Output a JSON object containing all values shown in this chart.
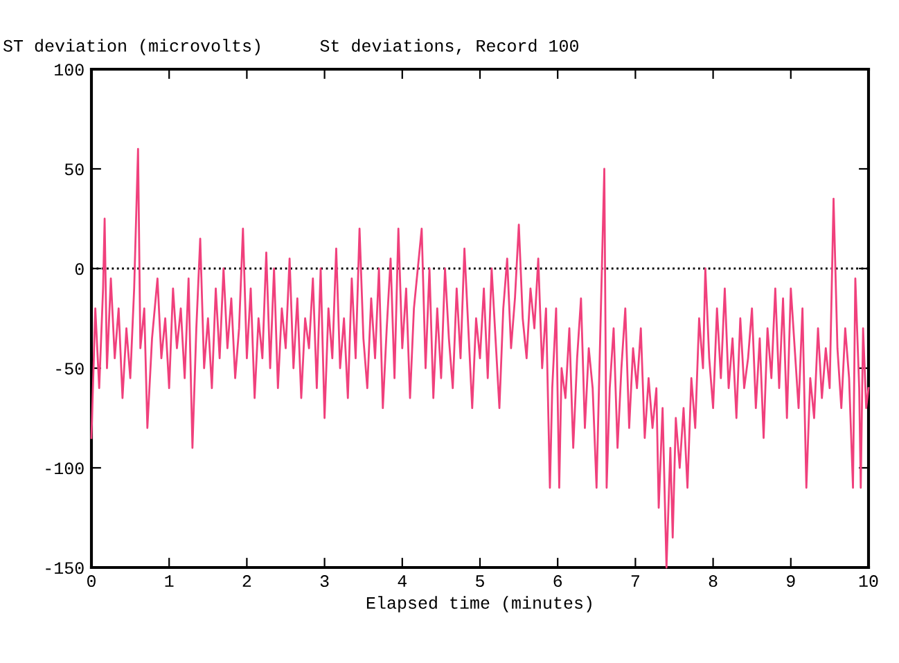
{
  "chart_data": {
    "type": "line",
    "title": "St deviations, Record 100",
    "xlabel": "Elapsed time (minutes)",
    "ylabel": "ST deviation (microvolts)",
    "xlim": [
      0,
      10
    ],
    "xticks": [
      0,
      1,
      2,
      3,
      4,
      5,
      6,
      7,
      8,
      9,
      10
    ],
    "ylim": [
      -150,
      100
    ],
    "yticks": [
      -150,
      -100,
      -50,
      0,
      50,
      100
    ],
    "grid": false,
    "legend": false,
    "ref_lines": [
      {
        "axis": "y",
        "value": 0,
        "color": "#000000",
        "line_style": "dotted"
      }
    ],
    "series": [
      {
        "color": "#f0407c",
        "x": [
          0,
          0.05,
          0.1,
          0.15,
          0.17,
          0.2,
          0.25,
          0.3,
          0.35,
          0.4,
          0.45,
          0.5,
          0.55,
          0.6,
          0.63,
          0.68,
          0.72,
          0.78,
          0.85,
          0.9,
          0.95,
          1.0,
          1.05,
          1.1,
          1.15,
          1.2,
          1.25,
          1.3,
          1.35,
          1.4,
          1.45,
          1.5,
          1.55,
          1.6,
          1.65,
          1.7,
          1.75,
          1.8,
          1.85,
          1.9,
          1.95,
          2.0,
          2.05,
          2.1,
          2.15,
          2.2,
          2.25,
          2.3,
          2.35,
          2.4,
          2.45,
          2.5,
          2.55,
          2.6,
          2.65,
          2.7,
          2.75,
          2.8,
          2.85,
          2.9,
          2.95,
          3.0,
          3.05,
          3.1,
          3.15,
          3.2,
          3.25,
          3.3,
          3.35,
          3.4,
          3.45,
          3.5,
          3.55,
          3.6,
          3.65,
          3.7,
          3.75,
          3.8,
          3.85,
          3.9,
          3.95,
          4.0,
          4.05,
          4.1,
          4.15,
          4.25,
          4.3,
          4.35,
          4.4,
          4.45,
          4.5,
          4.55,
          4.6,
          4.65,
          4.7,
          4.75,
          4.8,
          4.85,
          4.9,
          4.95,
          5.0,
          5.05,
          5.1,
          5.15,
          5.2,
          5.25,
          5.3,
          5.35,
          5.4,
          5.45,
          5.5,
          5.55,
          5.6,
          5.65,
          5.7,
          5.75,
          5.8,
          5.85,
          5.9,
          5.93,
          5.98,
          6.02,
          6.05,
          6.1,
          6.15,
          6.2,
          6.25,
          6.3,
          6.35,
          6.4,
          6.45,
          6.5,
          6.55,
          6.6,
          6.63,
          6.67,
          6.72,
          6.77,
          6.82,
          6.87,
          6.92,
          6.97,
          7.02,
          7.07,
          7.12,
          7.17,
          7.22,
          7.27,
          7.3,
          7.35,
          7.4,
          7.45,
          7.48,
          7.52,
          7.57,
          7.62,
          7.67,
          7.72,
          7.77,
          7.82,
          7.87,
          7.9,
          7.95,
          8.0,
          8.05,
          8.1,
          8.15,
          8.2,
          8.25,
          8.3,
          8.35,
          8.4,
          8.45,
          8.5,
          8.55,
          8.6,
          8.65,
          8.7,
          8.75,
          8.8,
          8.85,
          8.9,
          8.95,
          9.0,
          9.05,
          9.1,
          9.15,
          9.2,
          9.25,
          9.3,
          9.35,
          9.4,
          9.45,
          9.5,
          9.55,
          9.6,
          9.65,
          9.7,
          9.75,
          9.8,
          9.83,
          9.88,
          9.9,
          9.93,
          9.97,
          10.0
        ],
        "values": [
          -85,
          -20,
          -60,
          -10,
          25,
          -50,
          -5,
          -45,
          -20,
          -65,
          -30,
          -55,
          -10,
          60,
          -40,
          -20,
          -80,
          -35,
          -5,
          -45,
          -25,
          -60,
          -10,
          -40,
          -20,
          -55,
          -5,
          -90,
          -30,
          15,
          -50,
          -25,
          -60,
          -10,
          -45,
          0,
          -40,
          -15,
          -55,
          -30,
          20,
          -45,
          -10,
          -65,
          -25,
          -45,
          8,
          -50,
          0,
          -60,
          -20,
          -40,
          5,
          -50,
          -15,
          -65,
          -25,
          -40,
          -5,
          -60,
          0,
          -75,
          -20,
          -45,
          10,
          -50,
          -25,
          -65,
          -5,
          -45,
          20,
          -35,
          -60,
          -15,
          -45,
          0,
          -70,
          -30,
          5,
          -55,
          20,
          -40,
          -10,
          -65,
          -20,
          20,
          -50,
          0,
          -65,
          -20,
          -55,
          0,
          -35,
          -60,
          -10,
          -45,
          10,
          -30,
          -70,
          -25,
          -45,
          -10,
          -55,
          0,
          -35,
          -70,
          -20,
          5,
          -40,
          -15,
          22,
          -25,
          -45,
          -10,
          -30,
          5,
          -50,
          -20,
          -110,
          -60,
          -20,
          -110,
          -50,
          -65,
          -30,
          -90,
          -45,
          -15,
          -80,
          -40,
          -60,
          -110,
          -30,
          50,
          -110,
          -60,
          -30,
          -90,
          -50,
          -20,
          -80,
          -40,
          -60,
          -30,
          -85,
          -55,
          -80,
          -60,
          -120,
          -70,
          -150,
          -90,
          -135,
          -75,
          -100,
          -70,
          -110,
          -55,
          -80,
          -25,
          -50,
          0,
          -45,
          -70,
          -20,
          -55,
          -10,
          -60,
          -35,
          -75,
          -25,
          -60,
          -45,
          -20,
          -70,
          -35,
          -85,
          -30,
          -55,
          -10,
          -60,
          -15,
          -75,
          -10,
          -40,
          -70,
          -20,
          -110,
          -55,
          -75,
          -30,
          -65,
          -40,
          -60,
          35,
          -40,
          -70,
          -30,
          -55,
          -110,
          -5,
          -60,
          -110,
          -30,
          -70,
          -60
        ]
      }
    ]
  }
}
